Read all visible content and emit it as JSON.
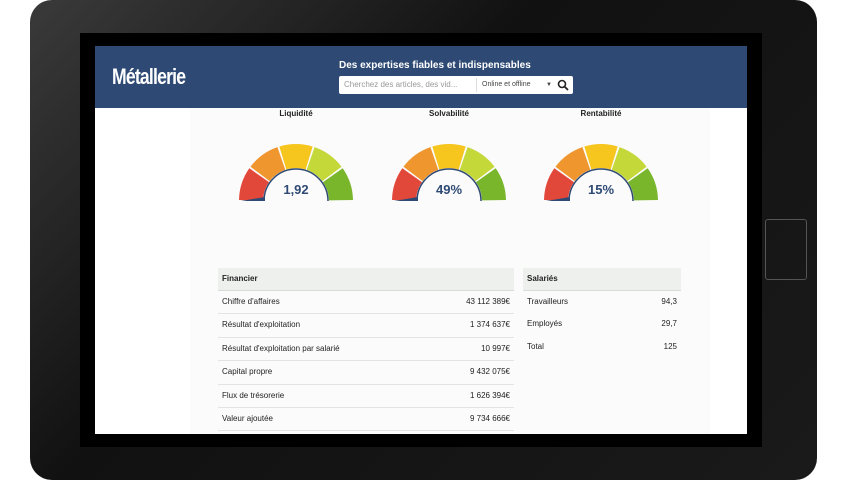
{
  "header": {
    "logo": "Métallerie",
    "tagline": "Des expertises fiables et indispensables",
    "search_placeholder": "Cherchez des articles, des vid...",
    "filter": "Online et offline"
  },
  "gauges": [
    {
      "label": "Liquidité",
      "value": "1,92"
    },
    {
      "label": "Solvabilité",
      "value": "49%"
    },
    {
      "label": "Rentabilité",
      "value": "15%"
    }
  ],
  "tables": [
    {
      "title": "Financier",
      "rows": [
        [
          "Chiffre d'affaires",
          "43 112 389€"
        ],
        [
          "Résultat d'exploitation",
          "1 374 637€"
        ],
        [
          "Résultat d'exploitation par salarié",
          "10 997€"
        ],
        [
          "Capital propre",
          "9 432 075€"
        ],
        [
          "Flux de trésorerie",
          "1 626 394€"
        ],
        [
          "Valeur ajoutée",
          "9 734 666€"
        ]
      ]
    },
    {
      "title": "Salariés",
      "rows": [
        [
          "Travailleurs",
          "94,3"
        ],
        [
          "Employés",
          "29,7"
        ],
        [
          "Total",
          "125"
        ]
      ]
    }
  ]
}
